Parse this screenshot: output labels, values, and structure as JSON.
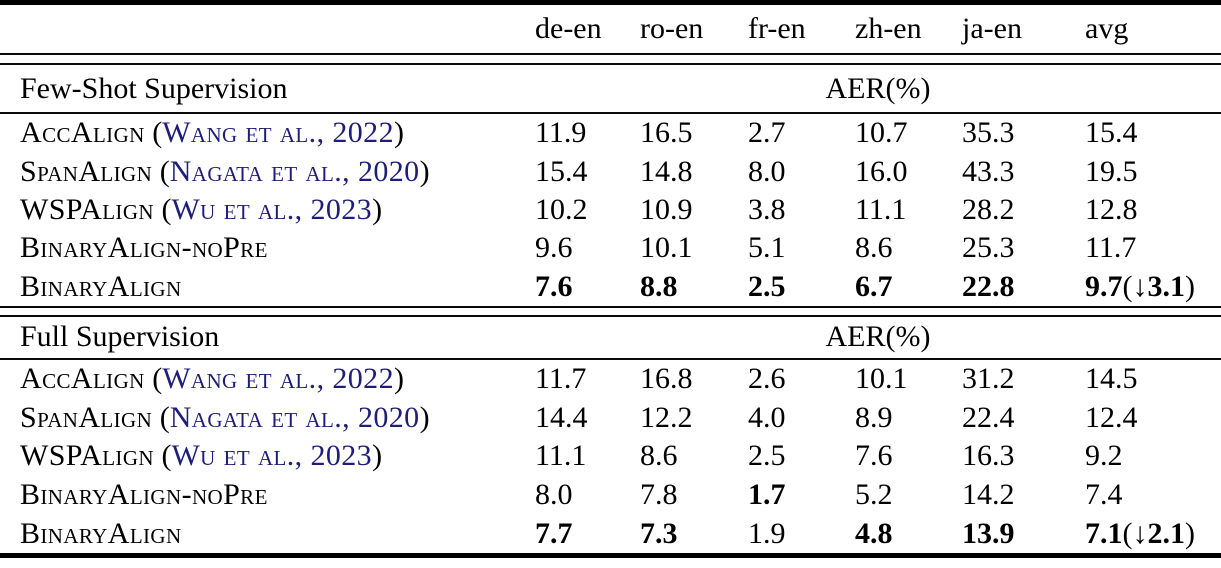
{
  "table": {
    "columns": [
      "de-en",
      "ro-en",
      "fr-en",
      "zh-en",
      "ja-en",
      "avg"
    ],
    "colors": {
      "citation": "#1e1e78",
      "text": "#000000",
      "rule": "#000000"
    },
    "sections": [
      {
        "title": "Few-Shot Supervision",
        "metric_label": "AER(%)",
        "rows": [
          {
            "method": "AccAlign",
            "paren_open": " (",
            "citation": "Wang et al., 2022",
            "paren_close": ")",
            "values": [
              {
                "text": "11.9"
              },
              {
                "text": "16.5"
              },
              {
                "text": "2.7"
              },
              {
                "text": "10.7"
              },
              {
                "text": "35.3"
              },
              {
                "text": "15.4"
              }
            ]
          },
          {
            "method": "SpanAlign",
            "paren_open": " (",
            "citation": "Nagata et al., 2020",
            "paren_close": ")",
            "values": [
              {
                "text": "15.4"
              },
              {
                "text": "14.8"
              },
              {
                "text": "8.0"
              },
              {
                "text": "16.0"
              },
              {
                "text": "43.3"
              },
              {
                "text": "19.5"
              }
            ]
          },
          {
            "method": "WSPAlign",
            "paren_open": " (",
            "citation": "Wu et al., 2023",
            "paren_close": ")",
            "values": [
              {
                "text": "10.2"
              },
              {
                "text": "10.9"
              },
              {
                "text": "3.8"
              },
              {
                "text": "11.1"
              },
              {
                "text": "28.2"
              },
              {
                "text": "12.8"
              }
            ]
          },
          {
            "method": "BinaryAlign-noPre",
            "values": [
              {
                "text": "9.6"
              },
              {
                "text": "10.1"
              },
              {
                "text": "5.1"
              },
              {
                "text": "8.6"
              },
              {
                "text": "25.3"
              },
              {
                "text": "11.7"
              }
            ]
          },
          {
            "method": "BinaryAlign",
            "values": [
              {
                "text": "7.6",
                "bold": true
              },
              {
                "text": "8.8",
                "bold": true
              },
              {
                "text": "2.5",
                "bold": true
              },
              {
                "text": "6.7",
                "bold": true
              },
              {
                "text": "22.8",
                "bold": true
              },
              {
                "text": "9.7",
                "bold": true,
                "delta_open": "(",
                "delta_arrow": "↓",
                "delta": "3.1",
                "delta_close": ")"
              }
            ]
          }
        ]
      },
      {
        "title": "Full Supervision",
        "metric_label": "AER(%)",
        "rows": [
          {
            "method": "AccAlign",
            "paren_open": " (",
            "citation": "Wang et al., 2022",
            "paren_close": ")",
            "values": [
              {
                "text": "11.7"
              },
              {
                "text": "16.8"
              },
              {
                "text": "2.6"
              },
              {
                "text": "10.1"
              },
              {
                "text": "31.2"
              },
              {
                "text": "14.5"
              }
            ]
          },
          {
            "method": "SpanAlign",
            "paren_open": " (",
            "citation": "Nagata et al., 2020",
            "paren_close": ")",
            "values": [
              {
                "text": "14.4"
              },
              {
                "text": "12.2"
              },
              {
                "text": "4.0"
              },
              {
                "text": "8.9"
              },
              {
                "text": "22.4"
              },
              {
                "text": "12.4"
              }
            ]
          },
          {
            "method": "WSPAlign",
            "paren_open": " (",
            "citation": "Wu et al., 2023",
            "paren_close": ")",
            "values": [
              {
                "text": "11.1"
              },
              {
                "text": "8.6"
              },
              {
                "text": "2.5"
              },
              {
                "text": "7.6"
              },
              {
                "text": "16.3"
              },
              {
                "text": "9.2"
              }
            ]
          },
          {
            "method": "BinaryAlign-noPre",
            "values": [
              {
                "text": "8.0"
              },
              {
                "text": "7.8"
              },
              {
                "text": "1.7",
                "bold": true
              },
              {
                "text": "5.2"
              },
              {
                "text": "14.2"
              },
              {
                "text": "7.4"
              }
            ]
          },
          {
            "method": "BinaryAlign",
            "values": [
              {
                "text": "7.7",
                "bold": true
              },
              {
                "text": "7.3",
                "bold": true
              },
              {
                "text": "1.9"
              },
              {
                "text": "4.8",
                "bold": true
              },
              {
                "text": "13.9",
                "bold": true
              },
              {
                "text": "7.1",
                "bold": true,
                "delta_open": "(",
                "delta_arrow": "↓",
                "delta": "2.1",
                "delta_close": ")"
              }
            ]
          }
        ]
      }
    ]
  }
}
